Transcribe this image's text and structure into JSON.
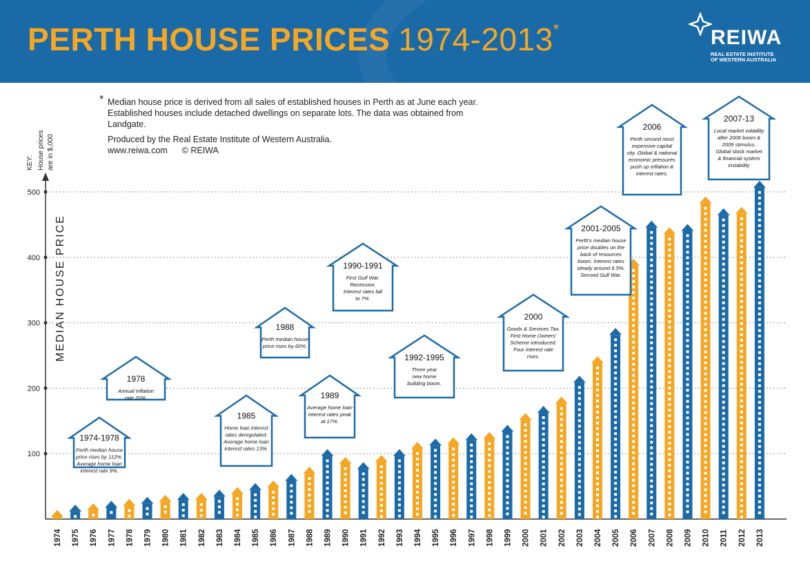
{
  "header": {
    "title_bold": "PERTH HOUSE PRICES",
    "title_years": "1974-2013",
    "title_mark": "*",
    "logo_word": "REIWA",
    "logo_sub1": "REAL ESTATE INSTITUTE",
    "logo_sub2": "OF WESTERN AUSTRALIA"
  },
  "notes": {
    "star": "*",
    "line1": "Median house price is derived from all sales of established houses in Perth as at June each year. Established houses include detached dwellings on separate lots. The data was obtained from Landgate.",
    "line2": "Produced by the Real Estate Institute of Western Australia.",
    "line3": "www.reiwa.com      © REIWA"
  },
  "colors": {
    "blue": "#1b6aa8",
    "orange": "#f5a623",
    "grid": "#9a9a9a"
  },
  "chart_data": {
    "type": "bar",
    "title": "PERTH HOUSE PRICES 1974-2013",
    "ylabel": "MEDIAN HOUSE PRICE",
    "key_label": "KEY:",
    "key_line1": "House prices",
    "key_line2": "are in $,000",
    "ylim": [
      0,
      520
    ],
    "yticks": [
      100,
      200,
      300,
      400,
      500
    ],
    "categories": [
      "1974",
      "1975",
      "1976",
      "1977",
      "1978",
      "1979",
      "1980",
      "1981",
      "1982",
      "1983",
      "1984",
      "1985",
      "1986",
      "1987",
      "1988",
      "1989",
      "1990",
      "1991",
      "1992",
      "1993",
      "1994",
      "1995",
      "1996",
      "1997",
      "1998",
      "1999",
      "2000",
      "2001",
      "2002",
      "2003",
      "2004",
      "2005",
      "2006",
      "2007",
      "2008",
      "2009",
      "2010",
      "2011",
      "2012",
      "2013"
    ],
    "values": [
      14,
      22,
      24,
      28,
      31,
      34,
      37,
      40,
      40,
      45,
      49,
      55,
      59,
      69,
      80,
      107,
      95,
      87,
      98,
      107,
      118,
      123,
      125,
      131,
      133,
      144,
      162,
      173,
      187,
      219,
      249,
      292,
      398,
      456,
      446,
      451,
      493,
      475,
      477,
      517
    ],
    "bar_colors": [
      "orange",
      "blue",
      "orange",
      "blue",
      "orange",
      "blue",
      "orange",
      "blue",
      "orange",
      "blue",
      "orange",
      "blue",
      "orange",
      "blue",
      "orange",
      "blue",
      "orange",
      "blue",
      "orange",
      "blue",
      "orange",
      "blue",
      "orange",
      "blue",
      "orange",
      "blue",
      "orange",
      "blue",
      "orange",
      "blue",
      "orange",
      "blue",
      "orange",
      "blue",
      "orange",
      "blue",
      "orange",
      "blue",
      "orange",
      "blue"
    ],
    "annotations": [
      {
        "title": "1974-1978",
        "lines": [
          "Perth median house",
          "price rises by 112%.",
          "Average home loan",
          "interest rate 9%."
        ]
      },
      {
        "title": "1978",
        "lines": [
          "Annual inflation",
          "rate 20%."
        ]
      },
      {
        "title": "1985",
        "lines": [
          "Home loan interest",
          "rates deregulated.",
          "Average home loan",
          "interest rates 13%."
        ]
      },
      {
        "title": "1988",
        "lines": [
          "Perth median house",
          "price rises by 60%."
        ]
      },
      {
        "title": "1989",
        "lines": [
          "Average home loan",
          "interest rates peak",
          "at 17%."
        ]
      },
      {
        "title": "1990-1991",
        "lines": [
          "First Gulf War.",
          "Recession.",
          "Interest rates fall",
          "to 7%."
        ]
      },
      {
        "title": "1992-1995",
        "lines": [
          "Three year",
          "new home",
          "building boom."
        ]
      },
      {
        "title": "2000",
        "lines": [
          "Goods & Services Tax.",
          "First Home Owners'",
          "Scheme introduced.",
          "Four interest rate",
          "rises."
        ]
      },
      {
        "title": "2001-2005",
        "lines": [
          "Perth's median house",
          "price doubles on the",
          "back of resources",
          "boom. Interest rates",
          "steady around 6.5%.",
          "Second Gulf War."
        ]
      },
      {
        "title": "2006",
        "lines": [
          "Perth second most",
          "expensive capital",
          "city. Global & national",
          "economic pressures",
          "push up inflation &",
          "interest rates."
        ]
      },
      {
        "title": "2007-13",
        "lines": [
          "Local market volatility",
          "after 2006 boom &",
          "2009 stimulus.",
          "Global stock market",
          "& financial system",
          "instability"
        ]
      }
    ]
  }
}
